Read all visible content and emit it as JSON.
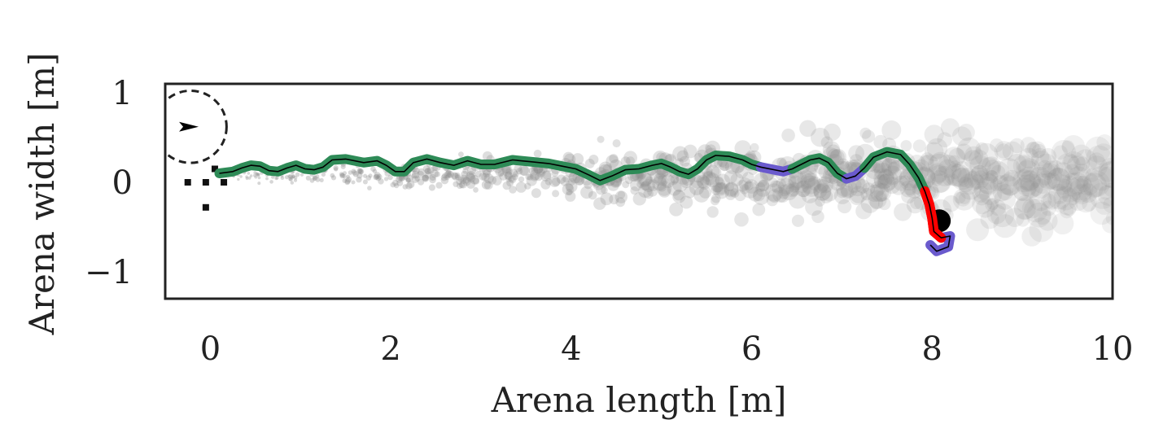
{
  "chart_data": {
    "type": "scatter",
    "title": "",
    "xlabel": "Arena length [m]",
    "ylabel": "Arena width [m]",
    "xlim": [
      -0.5,
      10.0
    ],
    "ylim": [
      -1.3,
      1.1
    ],
    "xticks": [
      0,
      2,
      4,
      6,
      8,
      10
    ],
    "xtick_labels": [
      "0",
      "2",
      "4",
      "6",
      "8",
      "10"
    ],
    "yticks": [
      1,
      0,
      -1
    ],
    "ytick_labels": [
      "1",
      "0",
      "−1"
    ],
    "grid": false,
    "legend": "none",
    "colors": {
      "cloud": "#8c8c8c",
      "trajectory_main": "#2e8b57",
      "trajectory_alt": "#6a5acd",
      "trajectory_end": "#ff0000",
      "centerline": "#000000",
      "frame": "#222222"
    },
    "start_marker": {
      "x": -0.22,
      "y": 0.62,
      "radius": 0.4,
      "heading": "right"
    },
    "start_squares": [
      [
        -0.25,
        0.0
      ],
      [
        -0.05,
        0.0
      ],
      [
        0.15,
        0.0
      ],
      [
        -0.05,
        -0.28
      ],
      [
        0.05,
        0.15
      ]
    ],
    "trajectory": [
      [
        0.1,
        0.1
      ],
      [
        0.25,
        0.12
      ],
      [
        0.35,
        0.16
      ],
      [
        0.45,
        0.19
      ],
      [
        0.55,
        0.18
      ],
      [
        0.65,
        0.13
      ],
      [
        0.75,
        0.12
      ],
      [
        0.85,
        0.16
      ],
      [
        0.95,
        0.19
      ],
      [
        1.05,
        0.15
      ],
      [
        1.15,
        0.14
      ],
      [
        1.25,
        0.17
      ],
      [
        1.35,
        0.25
      ],
      [
        1.5,
        0.26
      ],
      [
        1.7,
        0.22
      ],
      [
        1.85,
        0.24
      ],
      [
        1.95,
        0.19
      ],
      [
        2.05,
        0.12
      ],
      [
        2.15,
        0.12
      ],
      [
        2.25,
        0.22
      ],
      [
        2.4,
        0.26
      ],
      [
        2.55,
        0.22
      ],
      [
        2.7,
        0.19
      ],
      [
        2.85,
        0.24
      ],
      [
        3.0,
        0.2
      ],
      [
        3.15,
        0.2
      ],
      [
        3.35,
        0.25
      ],
      [
        3.55,
        0.23
      ],
      [
        3.75,
        0.21
      ],
      [
        3.9,
        0.18
      ],
      [
        4.05,
        0.15
      ],
      [
        4.2,
        0.08
      ],
      [
        4.32,
        0.02
      ],
      [
        4.45,
        0.07
      ],
      [
        4.6,
        0.14
      ],
      [
        4.75,
        0.15
      ],
      [
        4.9,
        0.19
      ],
      [
        5.0,
        0.21
      ],
      [
        5.1,
        0.17
      ],
      [
        5.2,
        0.12
      ],
      [
        5.3,
        0.09
      ],
      [
        5.4,
        0.15
      ],
      [
        5.5,
        0.25
      ],
      [
        5.6,
        0.3
      ],
      [
        5.75,
        0.29
      ],
      [
        5.9,
        0.25
      ],
      [
        6.0,
        0.2
      ],
      [
        6.1,
        0.17
      ],
      [
        6.25,
        0.14
      ],
      [
        6.35,
        0.12
      ],
      [
        6.45,
        0.15
      ],
      [
        6.55,
        0.2
      ],
      [
        6.65,
        0.25
      ],
      [
        6.75,
        0.27
      ],
      [
        6.85,
        0.22
      ],
      [
        6.95,
        0.1
      ],
      [
        7.05,
        0.04
      ],
      [
        7.15,
        0.07
      ],
      [
        7.25,
        0.16
      ],
      [
        7.35,
        0.28
      ],
      [
        7.5,
        0.34
      ],
      [
        7.65,
        0.31
      ],
      [
        7.75,
        0.2
      ],
      [
        7.85,
        0.05
      ],
      [
        7.92,
        -0.1
      ],
      [
        7.97,
        -0.25
      ],
      [
        8.0,
        -0.4
      ],
      [
        8.02,
        -0.55
      ],
      [
        8.1,
        -0.62
      ],
      [
        8.2,
        -0.6
      ],
      [
        8.18,
        -0.72
      ],
      [
        8.05,
        -0.77
      ],
      [
        7.98,
        -0.7
      ]
    ],
    "segment_colors": [
      {
        "from": 0,
        "to": 47,
        "color": "trajectory_main"
      },
      {
        "from": 47,
        "to": 50,
        "color": "trajectory_alt"
      },
      {
        "from": 50,
        "to": 56,
        "color": "trajectory_main"
      },
      {
        "from": 56,
        "to": 58,
        "color": "trajectory_alt"
      },
      {
        "from": 58,
        "to": 64,
        "color": "trajectory_main"
      },
      {
        "from": 64,
        "to": 68,
        "color": "trajectory_end"
      },
      {
        "from": 68,
        "to": 72,
        "color": "trajectory_alt"
      }
    ],
    "end_marker": {
      "x": 8.08,
      "y": -0.43
    },
    "cloud": {
      "description_range_x": [
        0.1,
        10.0
      ],
      "center_y_start": 0.08,
      "center_y_end": 0.05,
      "spread_start": 0.04,
      "spread_end": 0.45,
      "count": 900
    }
  }
}
